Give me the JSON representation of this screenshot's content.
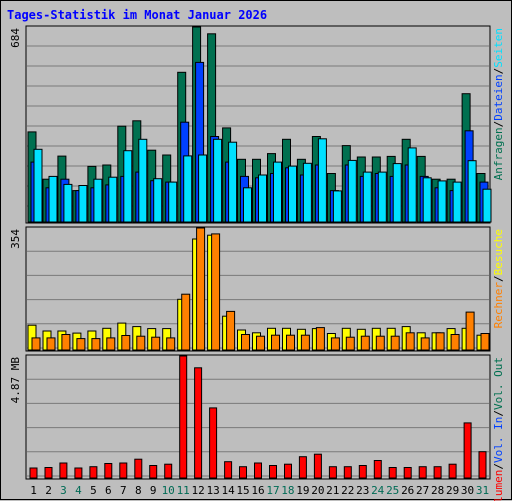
{
  "title": "Tages-Statistik im Monat Januar 2026",
  "chart_data": [
    {
      "id": "top",
      "type": "bar",
      "max_label": "684",
      "ylim": [
        0,
        684
      ],
      "series": [
        {
          "name": "Anfragen",
          "color": "#007050",
          "values": [
            316,
            150,
            231,
            110,
            195,
            200,
            336,
            355,
            252,
            235,
            525,
            684,
            660,
            330,
            220,
            220,
            240,
            290,
            220,
            300,
            170,
            268,
            228,
            228,
            230,
            290,
            230,
            150,
            150,
            450,
            170
          ]
        },
        {
          "name": "Dateien",
          "color": "#0040ff",
          "values": [
            210,
            120,
            150,
            110,
            120,
            130,
            160,
            175,
            145,
            140,
            350,
            560,
            300,
            210,
            160,
            155,
            170,
            190,
            165,
            200,
            110,
            200,
            160,
            170,
            160,
            200,
            160,
            120,
            110,
            320,
            140
          ]
        },
        {
          "name": "Seiten",
          "color": "#00e0ff",
          "values": [
            255,
            160,
            132,
            128,
            150,
            157,
            250,
            290,
            152,
            140,
            232,
            235,
            290,
            280,
            120,
            165,
            210,
            196,
            206,
            292,
            109,
            216,
            175,
            175,
            205,
            260,
            155,
            144,
            140,
            215,
            115
          ]
        }
      ]
    },
    {
      "id": "mid",
      "type": "bar",
      "max_label": "354",
      "ylim": [
        0,
        354
      ],
      "series": [
        {
          "name": "Besuche",
          "color": "#ffff00",
          "values": [
            72,
            55,
            55,
            49,
            55,
            63,
            78,
            68,
            62,
            62,
            147,
            322,
            333,
            98,
            58,
            50,
            63,
            63,
            60,
            62,
            48,
            63,
            60,
            63,
            63,
            68,
            50,
            50,
            62,
            63,
            43
          ]
        },
        {
          "name": "Rechner",
          "color": "#ff8000",
          "values": [
            35,
            35,
            45,
            33,
            33,
            35,
            42,
            40,
            37,
            35,
            162,
            354,
            337,
            112,
            45,
            40,
            43,
            43,
            43,
            65,
            35,
            37,
            40,
            40,
            40,
            50,
            35,
            50,
            45,
            110,
            48
          ]
        }
      ]
    },
    {
      "id": "bot",
      "type": "bar",
      "max_label": "4.87 MB",
      "ylim": [
        0,
        4.87
      ],
      "series": [
        {
          "name": "Volumen",
          "color": "#ff0000",
          "values": [
            0.4,
            0.42,
            0.6,
            0.4,
            0.45,
            0.58,
            0.6,
            0.75,
            0.5,
            0.55,
            4.87,
            4.4,
            2.8,
            0.65,
            0.45,
            0.6,
            0.5,
            0.55,
            0.85,
            0.95,
            0.45,
            0.45,
            0.5,
            0.7,
            0.42,
            0.42,
            0.45,
            0.45,
            0.55,
            2.2,
            1.05
          ]
        }
      ]
    }
  ],
  "x_labels": [
    "1",
    "2",
    "3",
    "4",
    "5",
    "6",
    "7",
    "8",
    "9",
    "10",
    "11",
    "12",
    "13",
    "14",
    "15",
    "16",
    "17",
    "18",
    "19",
    "20",
    "21",
    "22",
    "23",
    "24",
    "25",
    "26",
    "27",
    "28",
    "29",
    "30",
    "31"
  ],
  "weekend_days": [
    3,
    4,
    10,
    11,
    17,
    18,
    24,
    25,
    31
  ],
  "weekend_color": "#006b55",
  "weekday_color": "#000000",
  "right_labels": {
    "top": [
      {
        "text": "Anfragen",
        "color": "#007050"
      },
      {
        "text": "/",
        "color": "#000000"
      },
      {
        "text": "Dateien",
        "color": "#0040ff"
      },
      {
        "text": "/",
        "color": "#000000"
      },
      {
        "text": "Seiten",
        "color": "#00e0ff"
      }
    ],
    "mid": [
      {
        "text": "Rechner",
        "color": "#ff8000"
      },
      {
        "text": "/",
        "color": "#000000"
      },
      {
        "text": "Besuche",
        "color": "#ffff00"
      }
    ],
    "bot": [
      {
        "text": "Volumen",
        "color": "#ff0000"
      },
      {
        "text": "/",
        "color": "#000000"
      },
      {
        "text": "Vol. In",
        "color": "#0040ff"
      },
      {
        "text": "/",
        "color": "#000000"
      },
      {
        "text": "Vol. Out",
        "color": "#007050"
      }
    ]
  }
}
